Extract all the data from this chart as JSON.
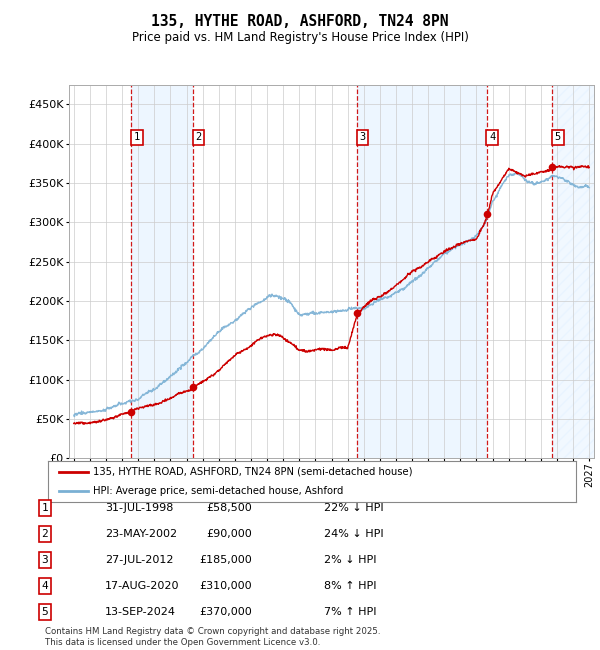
{
  "title": "135, HYTHE ROAD, ASHFORD, TN24 8PN",
  "subtitle": "Price paid vs. HM Land Registry's House Price Index (HPI)",
  "ylim": [
    0,
    475000
  ],
  "yticks": [
    0,
    50000,
    100000,
    150000,
    200000,
    250000,
    300000,
    350000,
    400000,
    450000
  ],
  "ytick_labels": [
    "£0",
    "£50K",
    "£100K",
    "£150K",
    "£200K",
    "£250K",
    "£300K",
    "£350K",
    "£400K",
    "£450K"
  ],
  "xlim_start": 1994.7,
  "xlim_end": 2027.3,
  "sale_dates": [
    1998.58,
    2002.39,
    2012.58,
    2020.63,
    2024.71
  ],
  "sale_prices": [
    58500,
    90000,
    185000,
    310000,
    370000
  ],
  "sale_labels": [
    "1",
    "2",
    "3",
    "4",
    "5"
  ],
  "sale_info": [
    {
      "label": "1",
      "date": "31-JUL-1998",
      "price": "£58,500",
      "hpi": "22% ↓ HPI"
    },
    {
      "label": "2",
      "date": "23-MAY-2002",
      "price": "£90,000",
      "hpi": "24% ↓ HPI"
    },
    {
      "label": "3",
      "date": "27-JUL-2012",
      "price": "£185,000",
      "hpi": "2% ↓ HPI"
    },
    {
      "label": "4",
      "date": "17-AUG-2020",
      "price": "£310,000",
      "hpi": "8% ↑ HPI"
    },
    {
      "label": "5",
      "date": "13-SEP-2024",
      "price": "£370,000",
      "hpi": "7% ↑ HPI"
    }
  ],
  "red_line_color": "#cc0000",
  "blue_line_color": "#7ab0d4",
  "shade_color": "#ddeeff",
  "background_color": "#ffffff",
  "grid_color": "#cccccc",
  "footer": "Contains HM Land Registry data © Crown copyright and database right 2025.\nThis data is licensed under the Open Government Licence v3.0.",
  "legend_line1": "135, HYTHE ROAD, ASHFORD, TN24 8PN (semi-detached house)",
  "legend_line2": "HPI: Average price, semi-detached house, Ashford"
}
